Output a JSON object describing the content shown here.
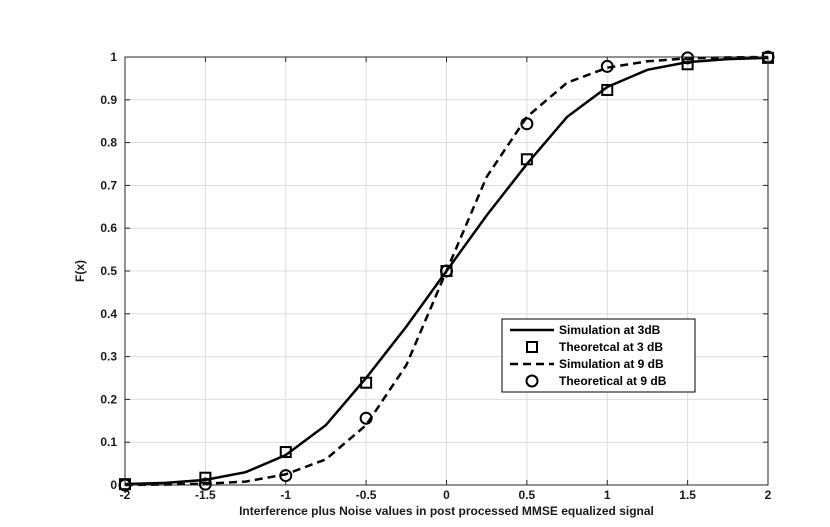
{
  "chart_data": {
    "type": "line",
    "xlabel": "Interference plus Noise values in post processed MMSE equalized signal",
    "ylabel": "F(x)",
    "xlim": [
      -2,
      2
    ],
    "ylim": [
      0,
      1
    ],
    "x_ticks": [
      "-2",
      "-1.5",
      "-1",
      "-0.5",
      "0",
      "0.5",
      "1",
      "1.5",
      "2"
    ],
    "y_ticks": [
      "0",
      "0.1",
      "0.2",
      "0.3",
      "0.4",
      "0.5",
      "0.6",
      "0.7",
      "0.8",
      "0.9",
      "1"
    ],
    "grid": true,
    "legend_position": "lower-right",
    "series": [
      {
        "name": "Simulation at 3dB",
        "style": "solid-line",
        "x": [
          -2,
          -1.75,
          -1.5,
          -1.25,
          -1,
          -0.75,
          -0.5,
          -0.25,
          0,
          0.25,
          0.5,
          0.75,
          1,
          1.25,
          1.5,
          1.75,
          2
        ],
        "y": [
          0.002,
          0.005,
          0.012,
          0.03,
          0.07,
          0.14,
          0.25,
          0.37,
          0.5,
          0.63,
          0.75,
          0.86,
          0.93,
          0.97,
          0.988,
          0.995,
          0.998
        ]
      },
      {
        "name": "Theoretcal at 3 dB",
        "style": "square-marker",
        "x": [
          -2,
          -1.5,
          -1,
          -0.5,
          0,
          0.5,
          1,
          1.5,
          2
        ],
        "y": [
          0.002,
          0.017,
          0.077,
          0.239,
          0.5,
          0.761,
          0.923,
          0.983,
          0.998
        ]
      },
      {
        "name": "Simulation at 9 dB",
        "style": "dashed-line",
        "x": [
          -2,
          -1.75,
          -1.5,
          -1.25,
          -1,
          -0.75,
          -0.5,
          -0.25,
          0,
          0.25,
          0.5,
          0.75,
          1,
          1.25,
          1.5,
          1.75,
          2
        ],
        "y": [
          0.0,
          0.001,
          0.003,
          0.008,
          0.025,
          0.06,
          0.14,
          0.28,
          0.5,
          0.72,
          0.86,
          0.94,
          0.975,
          0.99,
          0.997,
          0.999,
          1.0
        ]
      },
      {
        "name": "Theoretical at 9 dB",
        "style": "circle-marker",
        "x": [
          -2,
          -1.5,
          -1,
          -0.5,
          0,
          0.5,
          1,
          1.5,
          2
        ],
        "y": [
          0.0,
          0.002,
          0.022,
          0.156,
          0.5,
          0.844,
          0.978,
          0.998,
          1.0
        ]
      }
    ]
  }
}
